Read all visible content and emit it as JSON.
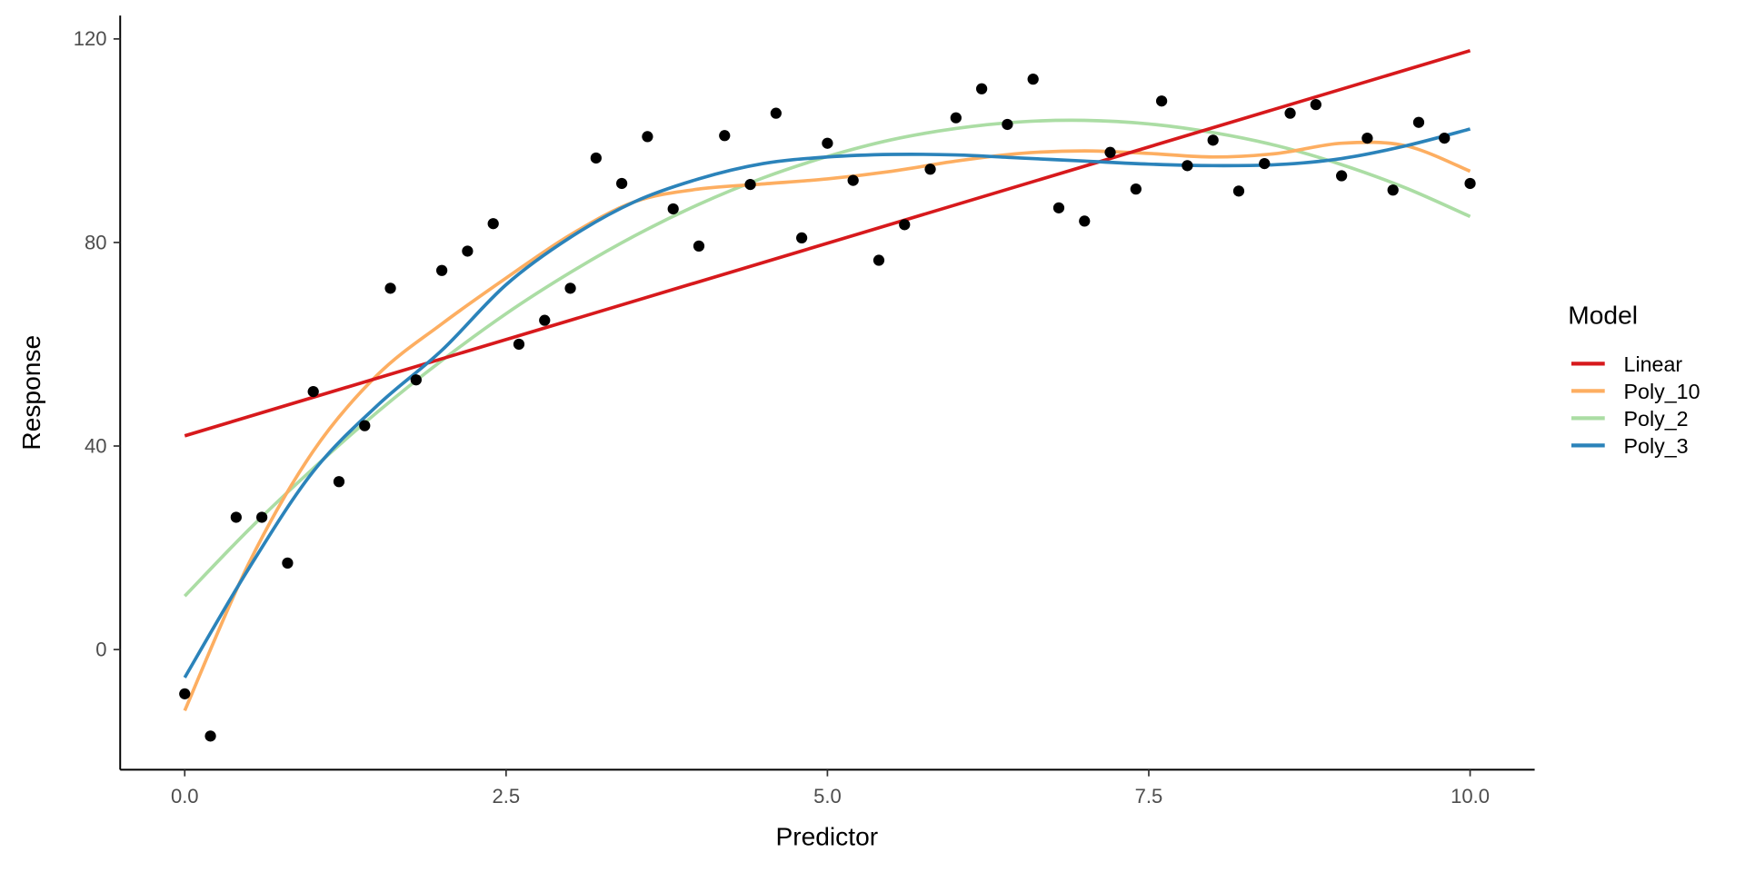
{
  "chart_data": {
    "type": "scatter",
    "title": "",
    "xlabel": "Predictor",
    "ylabel": "Response",
    "xlim": [
      -0.5,
      10.5
    ],
    "ylim": [
      -24,
      125
    ],
    "xticks": [
      0,
      2.5,
      5,
      7.5,
      10
    ],
    "xtick_labels": [
      "0.0",
      "2.5",
      "5.0",
      "7.5",
      "10.0"
    ],
    "yticks": [
      0,
      40,
      80,
      120
    ],
    "ytick_labels": [
      "0",
      "40",
      "80",
      "120"
    ],
    "grid": false,
    "legend": {
      "title": "Model",
      "placement": "right"
    },
    "points": {
      "x": [
        0,
        0.2,
        0.4,
        0.6,
        0.8,
        1,
        1.2,
        1.4,
        1.6,
        1.8,
        2,
        2.2,
        2.4,
        2.6,
        2.8,
        3,
        3.2,
        3.4,
        3.6,
        3.8,
        4,
        4.2,
        4.4,
        4.6,
        4.8,
        5,
        5.2,
        5.4,
        5.6,
        5.8,
        6,
        6.2,
        6.4,
        6.6,
        6.8,
        7,
        7.2,
        7.4,
        7.6,
        7.8,
        8,
        8.2,
        8.4,
        8.6,
        8.8,
        9,
        9.2,
        9.4,
        9.6,
        9.8,
        10
      ],
      "y": [
        -8.7,
        -17,
        26,
        26,
        17,
        50.7,
        33,
        44,
        71,
        53,
        74.5,
        78.3,
        83.7,
        60,
        64.7,
        71,
        96.6,
        91.6,
        100.8,
        86.6,
        79.3,
        101,
        91.4,
        105.4,
        80.9,
        99.5,
        92.2,
        76.5,
        83.5,
        94.4,
        104.5,
        110.2,
        103.2,
        112.1,
        86.8,
        84.2,
        97.7,
        90.5,
        107.8,
        95.1,
        100.1,
        90.1,
        95.5,
        105.4,
        107.1,
        93.1,
        100.5,
        90.3,
        103.6,
        100.5,
        91.6
      ],
      "color": "#000000"
    },
    "curve_x": [
      0,
      0.5,
      1,
      1.5,
      2,
      2.5,
      3,
      3.5,
      4,
      4.5,
      5,
      5.5,
      6,
      6.5,
      7,
      7.5,
      8,
      8.5,
      9,
      9.5,
      10
    ],
    "series": [
      {
        "name": "Linear",
        "color": "#d7191c",
        "values": [
          42,
          45.8,
          49.6,
          53.4,
          57.1,
          60.9,
          64.7,
          68.5,
          72.3,
          76.1,
          79.9,
          83.6,
          87.4,
          91.2,
          95,
          98.8,
          102.6,
          106.4,
          110.1,
          113.9,
          117.7
        ]
      },
      {
        "name": "Poly_10",
        "color": "#fdae61",
        "values": [
          -12,
          17,
          39,
          54,
          64,
          73,
          81.5,
          88,
          90.5,
          91.5,
          92.5,
          94,
          96,
          97.5,
          98,
          97.5,
          96.8,
          97.5,
          99.5,
          99,
          94
        ]
      },
      {
        "name": "Poly_2",
        "color": "#abdda4",
        "values": [
          10.5,
          23.6,
          35.6,
          46.7,
          56.8,
          66,
          74.1,
          81.3,
          87.5,
          92.7,
          96.9,
          100.2,
          102.4,
          103.7,
          104,
          103.3,
          101.6,
          99,
          95.3,
          90.7,
          85.1
        ]
      },
      {
        "name": "Poly_3",
        "color": "#2b83ba",
        "values": [
          -5.5,
          16,
          35,
          48,
          58.8,
          71.7,
          81,
          88,
          92.5,
          95.5,
          96.8,
          97.3,
          97.2,
          96.6,
          96,
          95.4,
          95.1,
          95.3,
          96.5,
          99,
          102.3
        ]
      }
    ]
  }
}
